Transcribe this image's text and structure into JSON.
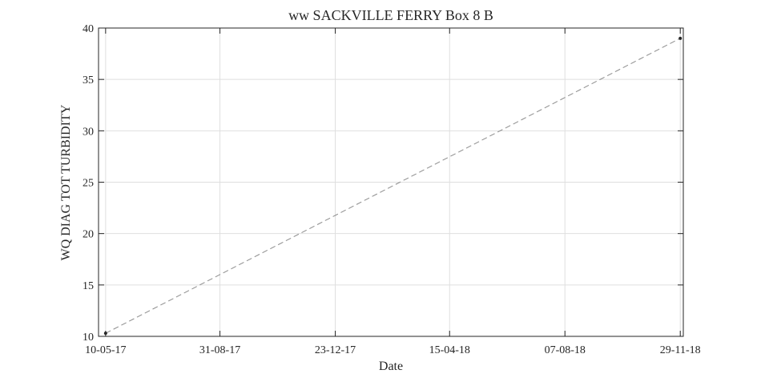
{
  "chart_data": {
    "type": "line",
    "title": "ww SACKVILLE FERRY Box 8 B",
    "xlabel": "Date",
    "ylabel": "WQ DIAG TOT TURBIDITY",
    "x_type": "date",
    "xlim": [
      "2017-05-03",
      "2018-12-02"
    ],
    "ylim": [
      10,
      40
    ],
    "x_ticks": [
      {
        "date": "2017-05-10",
        "label": "10-05-17"
      },
      {
        "date": "2017-08-31",
        "label": "31-08-17"
      },
      {
        "date": "2017-12-23",
        "label": "23-12-17"
      },
      {
        "date": "2018-04-15",
        "label": "15-04-18"
      },
      {
        "date": "2018-08-07",
        "label": "07-08-18"
      },
      {
        "date": "2018-11-29",
        "label": "29-11-18"
      }
    ],
    "y_ticks": [
      10,
      15,
      20,
      25,
      30,
      35,
      40
    ],
    "grid": true,
    "series": [
      {
        "x": [
          "2017-05-10",
          "2018-11-29"
        ],
        "y": [
          10.3,
          39.0
        ],
        "line_style": "dashed",
        "line_color": "#8c8c8c",
        "marker_color": "#262626"
      }
    ]
  }
}
